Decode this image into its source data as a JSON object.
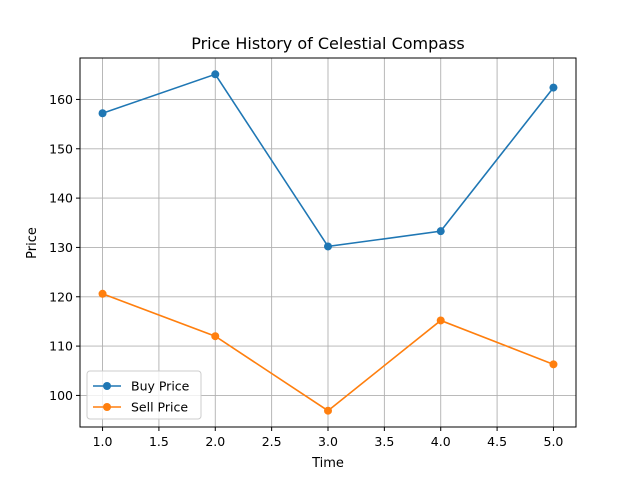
{
  "chart_data": {
    "type": "line",
    "title": "Price History of Celestial Compass",
    "xlabel": "Time",
    "ylabel": "Price",
    "x": [
      1,
      2,
      3,
      4,
      5
    ],
    "xlim": [
      0.8,
      5.2
    ],
    "ylim": [
      93.6,
      168.4
    ],
    "xticks": [
      "1.0",
      "1.5",
      "2.0",
      "2.5",
      "3.0",
      "3.5",
      "4.0",
      "4.5",
      "5.0"
    ],
    "yticks": [
      "100",
      "110",
      "120",
      "130",
      "140",
      "150",
      "160"
    ],
    "grid": true,
    "legend_position": "lower-left",
    "series": [
      {
        "name": "Buy Price",
        "color": "#1f77b4",
        "marker": "circle",
        "values": [
          157.2,
          165.1,
          130.2,
          133.3,
          162.4
        ]
      },
      {
        "name": "Sell Price",
        "color": "#ff7f0e",
        "marker": "circle",
        "values": [
          120.6,
          112.0,
          96.9,
          115.2,
          106.3
        ]
      }
    ]
  }
}
